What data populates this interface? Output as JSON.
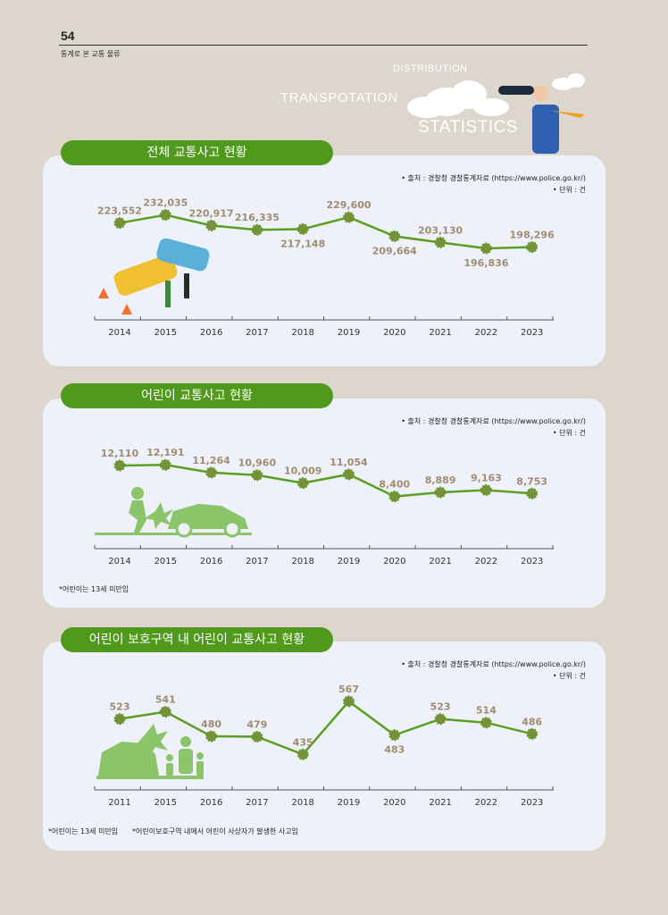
{
  "header": {
    "page_number": "54",
    "subtitle": "통계로 본 교통 물류"
  },
  "decoration": {
    "word_distribution": "DISTRIBUTION",
    "word_transportation": "TRANSPOTATION",
    "word_statistics": "STATISTICS"
  },
  "sections": [
    {
      "title": "전체 교통사고 현황",
      "source": "• 출처 : 경찰청 경찰통계자료 (https://www.police.go.kr/)",
      "unit": "• 단위 : 건",
      "notes": []
    },
    {
      "title": "어린이 교통사고 현황",
      "source": "• 출처 : 경찰청 경찰통계자료 (https://www.police.go.kr/)",
      "unit": "• 단위 : 건",
      "notes": [
        "*어린이는 13세 미만임"
      ]
    },
    {
      "title": "어린이 보호구역 내 어린이 교통사고 현황",
      "source": "• 출처 : 경찰청 경찰통계자료 (https://www.police.go.kr/)",
      "unit": "• 단위 : 건",
      "notes": [
        "*어린이는 13세 미만임",
        "*어린이보호구역 내에서 어린이 사상자가 발생한 사고임"
      ]
    }
  ],
  "chart_data": [
    {
      "type": "line",
      "x": [
        "2014",
        "2015",
        "2016",
        "2017",
        "2018",
        "2019",
        "2020",
        "2021",
        "2022",
        "2023"
      ],
      "values": [
        223552,
        232035,
        220917,
        216335,
        217148,
        229600,
        209664,
        203130,
        196836,
        198296
      ],
      "labels": [
        "223,552",
        "232,035",
        "220,917",
        "216,335",
        "217,148",
        "229,600",
        "209,664",
        "203,130",
        "196,836",
        "198,296"
      ],
      "label_pos": [
        "above",
        "above",
        "above",
        "above",
        "below",
        "above",
        "below",
        "above",
        "below",
        "above"
      ],
      "ylim": [
        180000,
        240000
      ],
      "grid": false,
      "line_color": "#5a9e22",
      "marker_color": "#7a8f3a",
      "label_color": "#a08c70"
    },
    {
      "type": "line",
      "x": [
        "2014",
        "2015",
        "2016",
        "2017",
        "2018",
        "2019",
        "2020",
        "2021",
        "2022",
        "2023"
      ],
      "values": [
        12110,
        12191,
        11264,
        10960,
        10009,
        11054,
        8400,
        8889,
        9163,
        8753
      ],
      "labels": [
        "12,110",
        "12,191",
        "11,264",
        "10,960",
        "10,009",
        "11,054",
        "8,400",
        "8,889",
        "9,163",
        "8,753"
      ],
      "label_pos": [
        "above",
        "above",
        "above",
        "above",
        "above",
        "above",
        "above",
        "above",
        "above",
        "above"
      ],
      "ylim": [
        6000,
        13500
      ],
      "grid": false,
      "line_color": "#5a9e22",
      "marker_color": "#7a8f3a",
      "label_color": "#a08c70"
    },
    {
      "type": "line",
      "x": [
        "2011",
        "2015",
        "2016",
        "2017",
        "2018",
        "2019",
        "2020",
        "2021",
        "2022",
        "2023"
      ],
      "values": [
        523,
        541,
        480,
        479,
        435,
        567,
        483,
        523,
        514,
        486
      ],
      "labels": [
        "523",
        "541",
        "480",
        "479",
        "435",
        "567",
        "483",
        "523",
        "514",
        "486"
      ],
      "label_pos": [
        "above",
        "above",
        "above",
        "above",
        "above",
        "above",
        "below",
        "above",
        "above",
        "above"
      ],
      "ylim": [
        400,
        600
      ],
      "grid": false,
      "line_color": "#5a9e22",
      "marker_color": "#7a8f3a",
      "label_color": "#a08c70"
    }
  ]
}
